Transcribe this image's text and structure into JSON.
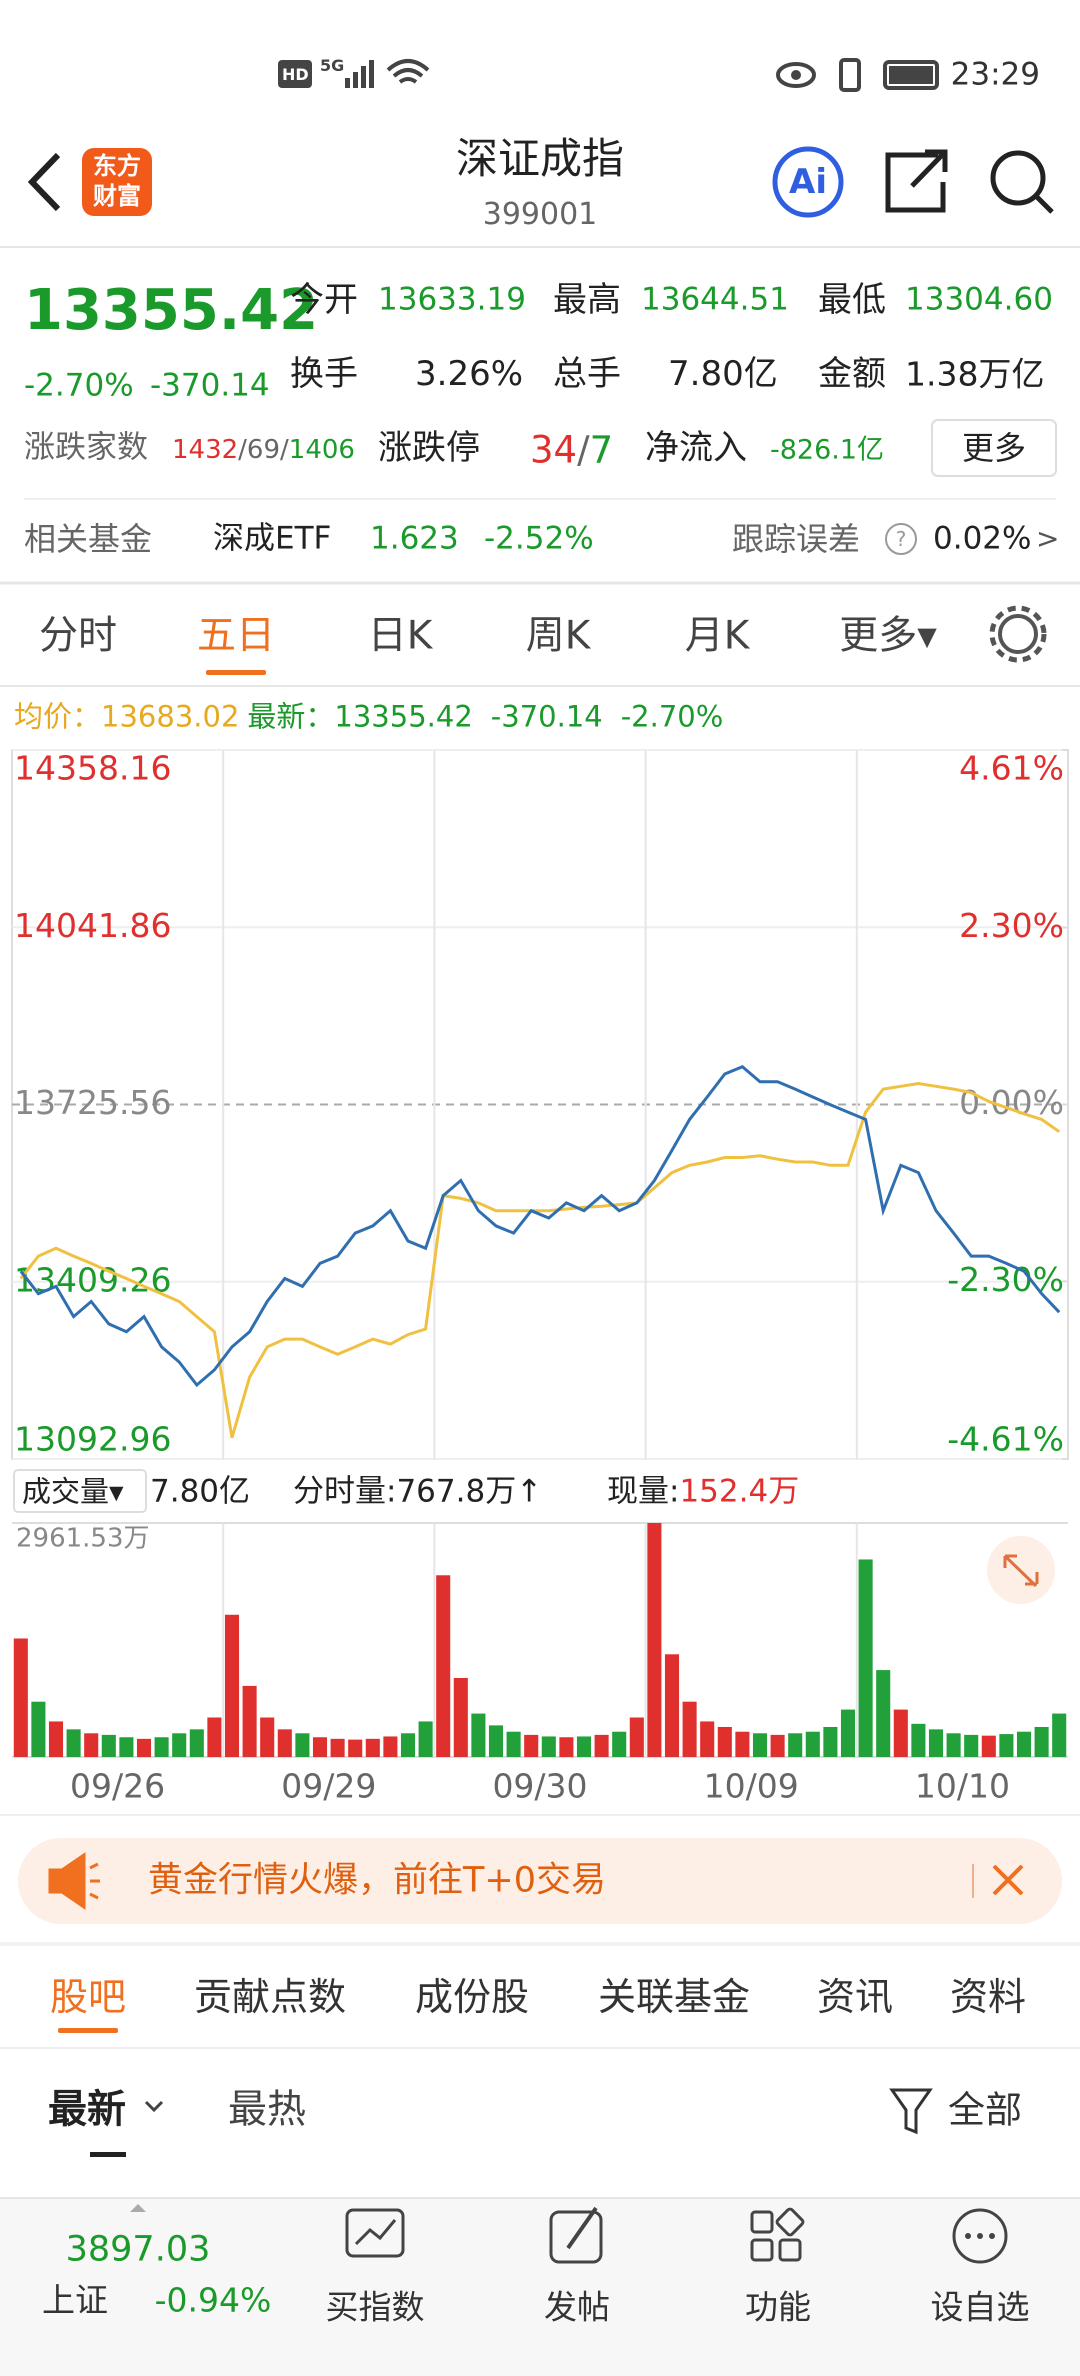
{
  "status_bar": {
    "hd": "HD",
    "network": "5G",
    "time": "23:29"
  },
  "header": {
    "logo_lines": [
      "东方",
      "财富"
    ],
    "title": "深证成指",
    "code": "399001",
    "ai": "Ai"
  },
  "quote": {
    "price": "13355.42",
    "change_pct": "-2.70%",
    "change": "-370.14",
    "stats": [
      {
        "label": "今开",
        "value": "13633.19"
      },
      {
        "label": "最高",
        "value": "13644.51"
      },
      {
        "label": "最低",
        "value": "13304.60"
      },
      {
        "label": "换手",
        "value": "3.26%"
      },
      {
        "label": "总手",
        "value": "7.80亿"
      },
      {
        "label": "金额",
        "value": "1.38万亿"
      }
    ],
    "breadth": {
      "label": "涨跌家数",
      "up": "1432",
      "flat": "/69/",
      "down": "1406"
    },
    "limit": {
      "label": "涨跌停",
      "up": "34",
      "sep": "/",
      "down": "7"
    },
    "net_inflow": {
      "label": "净流入",
      "value": "-826.1亿"
    },
    "more": "更多",
    "fund": {
      "label": "相关基金",
      "name": "深成ETF",
      "price": "1.623",
      "pct": "-2.52%",
      "error_label": "跟踪误差",
      "help": "?",
      "error": "0.02%",
      "arrow": ">"
    }
  },
  "tabs": {
    "items": [
      "分时",
      "五日",
      "日K",
      "周K",
      "月K",
      "更多▾"
    ],
    "active": 1
  },
  "legend": {
    "avg_label": "均价：",
    "avg_value": "13683.02",
    "latest_label": "最新：",
    "latest_value": "13355.42",
    "change": "-370.14",
    "pct": "-2.70%"
  },
  "chart": {
    "type": "line",
    "categories": [
      "09/26",
      "09/29",
      "09/30",
      "10/09",
      "10/10"
    ],
    "ylim": [
      13092.96,
      14358.16
    ],
    "yticks": [
      14358.16,
      14041.86,
      13725.56,
      13409.26,
      13092.96
    ],
    "y2lim": [
      -4.61,
      4.61
    ],
    "y2ticks": [
      {
        "value": 4.61,
        "label": "4.61%"
      },
      {
        "value": 2.3,
        "label": "2.30%"
      },
      {
        "value": 0,
        "label": "0.00%"
      },
      {
        "value": -2.3,
        "label": "-2.30%"
      },
      {
        "value": -4.61,
        "label": "-4.61%"
      }
    ],
    "series": [
      {
        "color": "#2f6fb0",
        "values": [
          13428,
          13388,
          13401,
          13347,
          13374,
          13334,
          13320,
          13347,
          13293,
          13266,
          13225,
          13252,
          13293,
          13320,
          13374,
          13415,
          13401,
          13442,
          13455,
          13496,
          13509,
          13536,
          13482,
          13469,
          13563,
          13590,
          13536,
          13509,
          13496,
          13536,
          13523,
          13550,
          13536,
          13563,
          13536,
          13550,
          13590,
          13644,
          13699,
          13739,
          13780,
          13793,
          13766,
          13766,
          13753,
          13739,
          13725,
          13712,
          13699,
          13536,
          13617,
          13604,
          13536,
          13496,
          13455,
          13455,
          13442,
          13428,
          13388,
          13355
        ]
      },
      {
        "color": "#f0c040",
        "values": [
          13415,
          13455,
          13469,
          13455,
          13442,
          13428,
          13415,
          13401,
          13388,
          13374,
          13347,
          13320,
          13131,
          13239,
          13293,
          13307,
          13307,
          13293,
          13280,
          13293,
          13307,
          13298,
          13315,
          13325,
          13563,
          13558,
          13550,
          13536,
          13536,
          13536,
          13536,
          13539,
          13542,
          13544,
          13547,
          13550,
          13577,
          13604,
          13617,
          13623,
          13631,
          13631,
          13634,
          13628,
          13623,
          13623,
          13617,
          13617,
          13712,
          13753,
          13758,
          13763,
          13758,
          13753,
          13747,
          13731,
          13720,
          13709,
          13699,
          13677
        ]
      }
    ]
  },
  "volume": {
    "type": "bar",
    "button": "成交量▾",
    "total": "7.80亿",
    "tick_volume": "分时量:767.8万↑",
    "current_label": "现量:",
    "current": "152.4万",
    "ylim": [
      0,
      2961.53
    ],
    "yticks": [
      {
        "value": 2961.53,
        "label": "2961.53万"
      }
    ],
    "up_color": "#e0302e",
    "down_color": "#22a03a",
    "values": [
      1500,
      700,
      450,
      350,
      300,
      280,
      250,
      230,
      250,
      300,
      350,
      500,
      1800,
      900,
      500,
      350,
      300,
      250,
      230,
      220,
      230,
      260,
      300,
      450,
      2300,
      1000,
      550,
      400,
      320,
      280,
      260,
      250,
      260,
      280,
      320,
      500,
      2961.53,
      1300,
      700,
      450,
      380,
      320,
      300,
      280,
      300,
      320,
      380,
      600,
      2500,
      1100,
      600,
      420,
      350,
      300,
      280,
      270,
      290,
      320,
      380,
      550
    ]
  },
  "banner": {
    "text": "黄金行情火爆，前往T+0交易"
  },
  "sub_tabs": {
    "items": [
      "股吧",
      "贡献点数",
      "成份股",
      "关联基金",
      "资讯",
      "资料"
    ],
    "active": 0
  },
  "sort": {
    "latest": "最新",
    "hot": "最热",
    "filter": "全部"
  },
  "bottom_bar": {
    "index_value": "3897.03",
    "index_name": "上证",
    "index_pct": "-0.94%",
    "items": [
      "买指数",
      "发帖",
      "功能",
      "设自选"
    ]
  }
}
